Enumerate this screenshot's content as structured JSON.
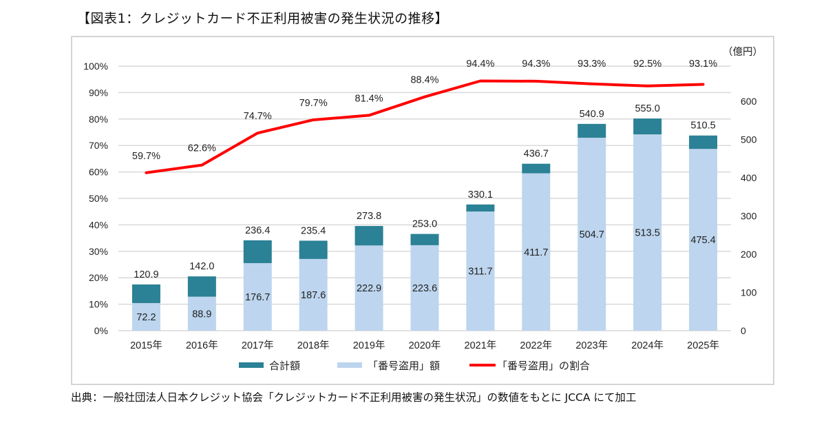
{
  "title": "【図表1：クレジットカード不正利用被害の発生状況の推移】",
  "source_note": "出典：一般社団法人日本クレジット協会「クレジットカード不正利用被害の発生状況」の数値をもとに JCCA にて加工",
  "colors": {
    "total": "#2b8195",
    "stolen": "#bdd5ee",
    "ratio": "#ff0000",
    "grid": "#d9d9d9"
  },
  "chart_data": {
    "type": "bar",
    "subtype": "stacked-bar-with-line",
    "title": "クレジットカード不正利用被害の発生状況の推移",
    "categories": [
      "2015年",
      "2016年",
      "2017年",
      "2018年",
      "2019年",
      "2020年",
      "2021年",
      "2022年",
      "2023年",
      "2024年",
      "2025年"
    ],
    "series": [
      {
        "name": "合計額",
        "type": "bar",
        "axis": "right",
        "values": [
          120.9,
          142.0,
          236.4,
          235.4,
          273.8,
          253.0,
          330.1,
          436.7,
          540.9,
          555.0,
          510.5
        ],
        "labels": [
          "120.9",
          "142.0",
          "236.4",
          "235.4",
          "273.8",
          "253.0",
          "330.1",
          "436.7",
          "540.9",
          "555.0",
          "510.5"
        ]
      },
      {
        "name": "「番号盗用」額",
        "type": "bar",
        "axis": "right",
        "values": [
          72.2,
          88.9,
          176.7,
          187.6,
          222.9,
          223.6,
          311.7,
          411.7,
          504.7,
          513.5,
          475.4
        ],
        "labels": [
          "72.2",
          "88.9",
          "176.7",
          "187.6",
          "222.9",
          "223.6",
          "311.7",
          "411.7",
          "504.7",
          "513.5",
          "475.4"
        ]
      },
      {
        "name": "「番号盗用」の割合",
        "type": "line",
        "axis": "left",
        "values": [
          59.7,
          62.6,
          74.7,
          79.7,
          81.4,
          88.4,
          94.4,
          94.3,
          93.3,
          92.5,
          93.1
        ],
        "labels": [
          "59.7%",
          "62.6%",
          "74.7%",
          "79.7%",
          "81.4%",
          "88.4%",
          "94.4%",
          "94.3%",
          "93.3%",
          "92.5%",
          "93.1%"
        ]
      }
    ],
    "left_axis": {
      "label": "",
      "ylim": [
        0,
        100
      ],
      "ticks": [
        "0%",
        "10%",
        "20%",
        "30%",
        "40%",
        "50%",
        "60%",
        "70%",
        "80%",
        "90%",
        "100%"
      ]
    },
    "right_axis": {
      "label": "（億円）",
      "ylim": [
        0,
        692
      ],
      "tick_values": [
        0,
        100,
        200,
        300,
        400,
        500,
        600
      ],
      "ticks": [
        "0",
        "100",
        "200",
        "300",
        "400",
        "500",
        "600"
      ]
    },
    "xlabel": "",
    "grid": true,
    "legend": {
      "placement": "bottom",
      "entries": [
        {
          "label": "合計額",
          "kind": "box",
          "series": 0
        },
        {
          "label": "「番号盗用」額",
          "kind": "box",
          "series": 1
        },
        {
          "label": "「番号盗用」の割合",
          "kind": "line",
          "series": 2
        }
      ]
    }
  }
}
